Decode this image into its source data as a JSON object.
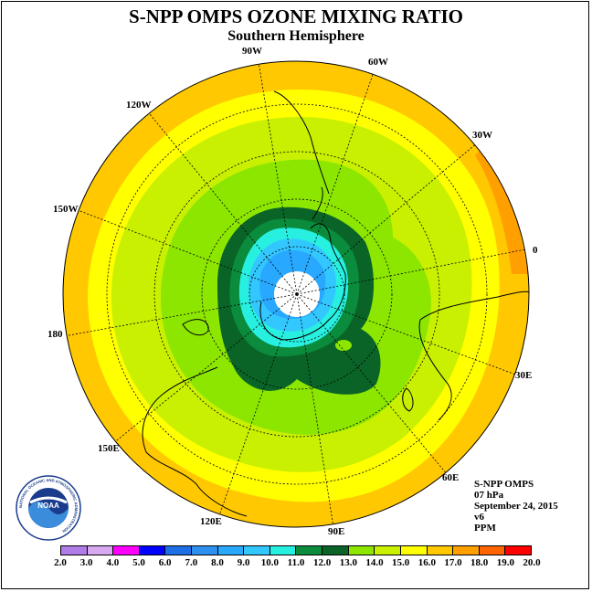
{
  "title": "S-NPP OMPS OZONE MIXING RATIO",
  "subtitle": "Southern Hemisphere",
  "longitude_labels": [
    "90W",
    "60W",
    "30W",
    "0",
    "30E",
    "60E",
    "90E",
    "120E",
    "150E",
    "180",
    "150W",
    "120W"
  ],
  "info": {
    "instrument": "S-NPP OMPS",
    "pressure": "07 hPa",
    "date": "September 24, 2015",
    "version": "v6",
    "units": "PPM"
  },
  "logo": {
    "text": "NOAA",
    "ring_text": "NATIONAL OCEANIC AND ATMOSPHERIC ADMINISTRATION",
    "ring_text2": "U.S. DEPARTMENT OF COMMERCE"
  },
  "colorbar": {
    "labels": [
      "2.0",
      "3.0",
      "4.0",
      "5.0",
      "6.0",
      "7.0",
      "8.0",
      "9.0",
      "10.0",
      "11.0",
      "12.0",
      "13.0",
      "14.0",
      "15.0",
      "16.0",
      "17.0",
      "18.0",
      "19.0",
      "20.0"
    ],
    "colors": [
      "#b07ce8",
      "#d8a8f0",
      "#ff00ff",
      "#0000ff",
      "#1e6fe6",
      "#2d8ff0",
      "#28a8ff",
      "#32c8ff",
      "#28f0e0",
      "#0a8c3c",
      "#0a6428",
      "#8ce600",
      "#c8f000",
      "#ffff00",
      "#ffc800",
      "#ffa000",
      "#ff6400",
      "#ff0000",
      "#8b5a3c"
    ]
  },
  "map_colors": {
    "outer": "#ffc800",
    "edge": "#ffa000",
    "yellow": "#ffff00",
    "lime": "#c8f000",
    "green": "#8ce600",
    "darkgreen": "#0a6428",
    "green2": "#0a8c3c",
    "cyan": "#28f0e0",
    "lightblue": "#32c8ff",
    "blue": "#28a8ff"
  }
}
